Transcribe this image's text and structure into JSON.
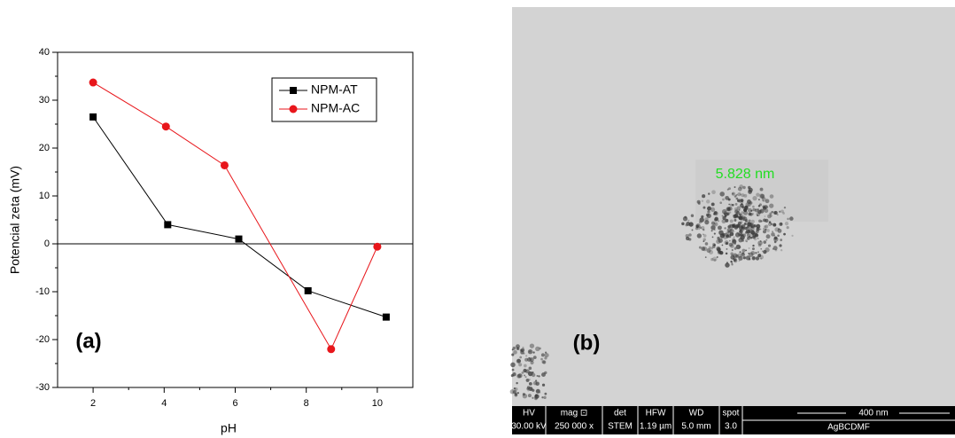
{
  "chart_data": {
    "type": "line",
    "x_label": "pH",
    "y_label": "Potencial zeta (mV)",
    "annotation": "(a)",
    "xlim": [
      1,
      11
    ],
    "xticks": [
      2,
      4,
      6,
      8,
      10
    ],
    "x_minor_ticks": [
      3,
      5,
      7,
      9
    ],
    "ylim": [
      -30,
      40
    ],
    "yticks": [
      -30,
      -20,
      -10,
      0,
      10,
      20,
      30,
      40
    ],
    "y_minor_ticks": [
      -25,
      -15,
      -5,
      5,
      15,
      25,
      35
    ],
    "hline": 0,
    "legend": "top-right",
    "series": [
      {
        "name": "NPM-AT",
        "color": "#000000",
        "marker": "square",
        "x": [
          2,
          4.1,
          6.1,
          8.05,
          10.25
        ],
        "values": [
          26.5,
          4,
          1,
          -9.8,
          -15.3
        ]
      },
      {
        "name": "NPM-AC",
        "color": "#e8161b",
        "marker": "circle",
        "x": [
          2,
          4.05,
          5.7,
          8.7,
          10
        ],
        "values": [
          33.7,
          24.5,
          16.4,
          -22,
          -0.6
        ]
      }
    ]
  },
  "image": {
    "measurement": "5.828 nm",
    "label": "(b)",
    "info_bar": {
      "headers": [
        "HV",
        "mag ⊡",
        "det",
        "HFW",
        "WD",
        "spot"
      ],
      "values": [
        "30.00 kV",
        "250 000 x",
        "STEM",
        "1.19 µm",
        "5.0 mm",
        "3.0"
      ],
      "scale_bar": "400 nm",
      "sample": "AgBCDMF"
    }
  }
}
